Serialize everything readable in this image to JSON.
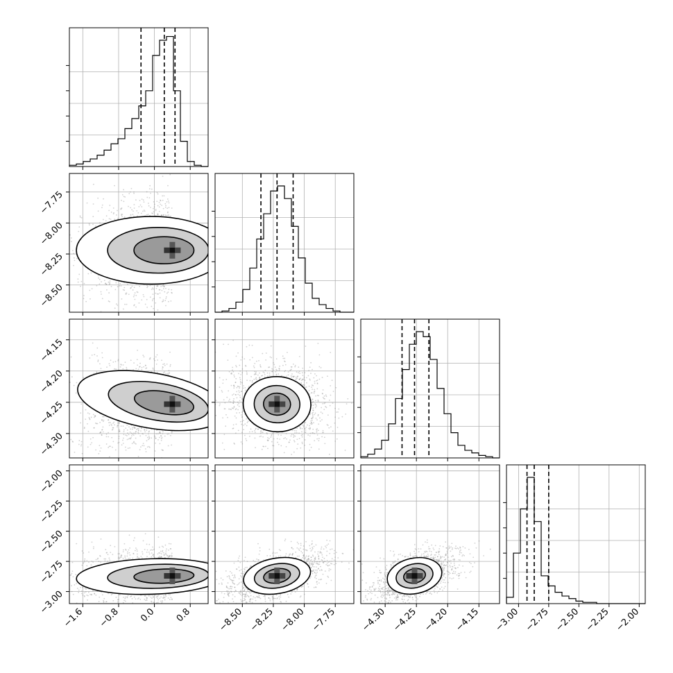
{
  "chart_data": {
    "type": "corner",
    "grid": true,
    "parameters": [
      {
        "ticks": [
          "−1.6",
          "−0.8",
          "0.0",
          "0.8"
        ],
        "tick_values": [
          -1.6,
          -0.8,
          0.0,
          0.8
        ],
        "range": [
          -1.9,
          1.2
        ],
        "quantiles": [
          -0.3,
          0.22,
          0.46
        ],
        "mode": 0.4,
        "width": 0.55
      },
      {
        "ticks": [
          "−8.50",
          "−8.25",
          "−8.00",
          "−7.75"
        ],
        "tick_values": [
          -8.5,
          -8.25,
          -8.0,
          -7.75
        ],
        "range": [
          -8.72,
          -7.6
        ],
        "quantiles": [
          -8.35,
          -8.22,
          -8.09
        ],
        "mode": -8.22,
        "width": 0.13
      },
      {
        "ticks": [
          "−4.30",
          "−4.25",
          "−4.20",
          "−4.15"
        ],
        "tick_values": [
          -4.3,
          -4.25,
          -4.2,
          -4.15
        ],
        "range": [
          -4.339,
          -4.117
        ],
        "quantiles": [
          -4.273,
          -4.253,
          -4.23
        ],
        "mode": -4.253,
        "width": 0.021
      },
      {
        "ticks": [
          "−3.00",
          "−2.75",
          "−2.50",
          "−2.25",
          "−2.00"
        ],
        "tick_values": [
          -3.0,
          -2.75,
          -2.5,
          -2.25,
          -2.0
        ],
        "range": [
          -3.1,
          -1.95
        ],
        "quantiles": [
          -2.93,
          -2.87,
          -2.75
        ],
        "mode": -2.87,
        "width": 0.07
      }
    ],
    "row_ticks": [
      [],
      [
        "−7.75",
        "−8.00",
        "−8.25",
        "−8.50"
      ],
      [
        "−4.15",
        "−4.20",
        "−4.25",
        "−4.30"
      ],
      [
        "−2.00",
        "−2.25",
        "−2.50",
        "−2.75",
        "−3.00"
      ]
    ],
    "row_tick_values": [
      [],
      [
        -7.75,
        -8.0,
        -8.25,
        -8.5
      ],
      [
        -4.15,
        -4.2,
        -4.25,
        -4.3
      ],
      [
        -2.0,
        -2.25,
        -2.5,
        -2.75,
        -3.0
      ]
    ],
    "row_ranges": [
      [],
      [
        -8.72,
        -7.6
      ],
      [
        -4.339,
        -4.117
      ],
      [
        -3.1,
        -1.95
      ]
    ],
    "histograms": [
      [
        0.01,
        0.02,
        0.04,
        0.06,
        0.09,
        0.13,
        0.18,
        0.22,
        0.3,
        0.38,
        0.48,
        0.6,
        0.88,
        1.0,
        1.03,
        0.6,
        0.2,
        0.04,
        0.01,
        0.0
      ],
      [
        0.0,
        0.01,
        0.03,
        0.08,
        0.18,
        0.35,
        0.58,
        0.78,
        0.96,
        1.0,
        0.9,
        0.68,
        0.43,
        0.23,
        0.11,
        0.06,
        0.03,
        0.01,
        0.0,
        0.0
      ],
      [
        0.01,
        0.03,
        0.07,
        0.14,
        0.27,
        0.47,
        0.7,
        0.9,
        1.0,
        0.96,
        0.78,
        0.55,
        0.35,
        0.2,
        0.1,
        0.06,
        0.04,
        0.02,
        0.01,
        0.0
      ],
      [
        0.05,
        0.4,
        0.75,
        1.0,
        0.65,
        0.22,
        0.14,
        0.09,
        0.06,
        0.04,
        0.02,
        0.01,
        0.01,
        0.0,
        0.0,
        0.0,
        0.0,
        0.0,
        0.0,
        0.0
      ]
    ],
    "correlations": {
      "1,0": {
        "rho": 0.0,
        "shape": "banana"
      },
      "2,0": {
        "rho": -0.55,
        "shape": "banana"
      },
      "2,1": {
        "rho": -0.1,
        "shape": "ellipse"
      },
      "3,0": {
        "rho": 0.15,
        "shape": "banana"
      },
      "3,1": {
        "rho": 0.55,
        "shape": "ellipse"
      },
      "3,2": {
        "rho": 0.55,
        "shape": "ellipse"
      }
    }
  }
}
